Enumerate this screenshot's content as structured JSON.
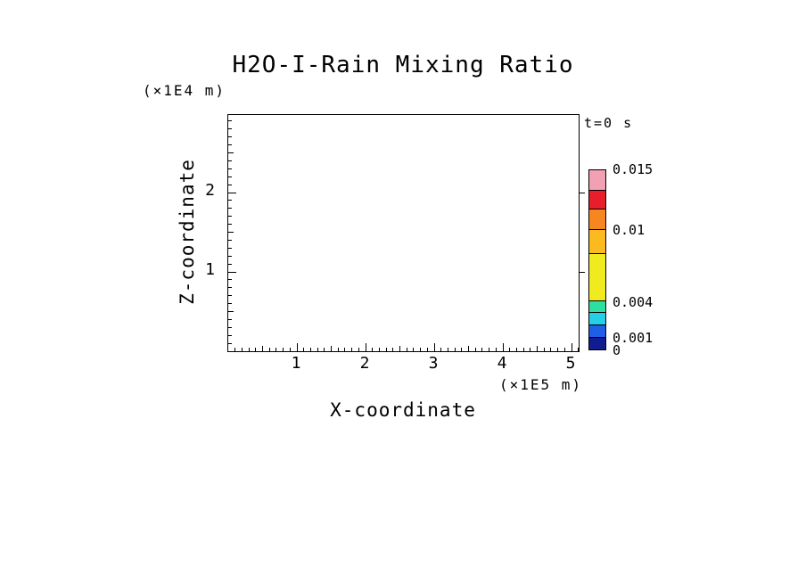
{
  "chart_data": {
    "type": "heatmap",
    "title": "H2O-I-Rain Mixing Ratio",
    "xlabel": "X-coordinate",
    "x_units": "(×1E5 m)",
    "ylabel": "Z-coordinate",
    "y_units": "(×1E4 m)",
    "time_annotation": "t=0 s",
    "xlim": [
      0,
      5.1
    ],
    "ylim": [
      0,
      3.0
    ],
    "x_ticks": [
      1,
      2,
      3,
      4,
      5
    ],
    "y_ticks": [
      1,
      2
    ],
    "grid": false,
    "values": [],
    "empty_field_note": "no contour/fill data plotted at t=0; plot interior is blank",
    "colorbar": {
      "position": "right",
      "value_min": 0,
      "value_max": 0.015,
      "tick_labels": [
        {
          "text": "0.015",
          "value": 0.015
        },
        {
          "text": "0.01",
          "value": 0.01
        },
        {
          "text": "0.004",
          "value": 0.004
        },
        {
          "text": "0.001",
          "value": 0.001
        },
        {
          "text": "0",
          "value": 0
        }
      ],
      "segments_top_to_bottom": [
        {
          "color": "#F2A0B4",
          "from": 0.0133,
          "to": 0.015
        },
        {
          "color": "#E81E2C",
          "from": 0.0117,
          "to": 0.0133
        },
        {
          "color": "#F6861F",
          "from": 0.01,
          "to": 0.0117
        },
        {
          "color": "#FBBA1F",
          "from": 0.008,
          "to": 0.01
        },
        {
          "color": "#EFEB1F",
          "from": 0.004,
          "to": 0.008
        },
        {
          "color": "#2BE0A0",
          "from": 0.003,
          "to": 0.004
        },
        {
          "color": "#24CFE8",
          "from": 0.002,
          "to": 0.003
        },
        {
          "color": "#1F5FE8",
          "from": 0.001,
          "to": 0.002
        },
        {
          "color": "#101C8F",
          "from": 0,
          "to": 0.001
        }
      ]
    },
    "colors": {
      "background": "#FFFFFF",
      "frame": "#000000",
      "text": "#000000"
    }
  }
}
